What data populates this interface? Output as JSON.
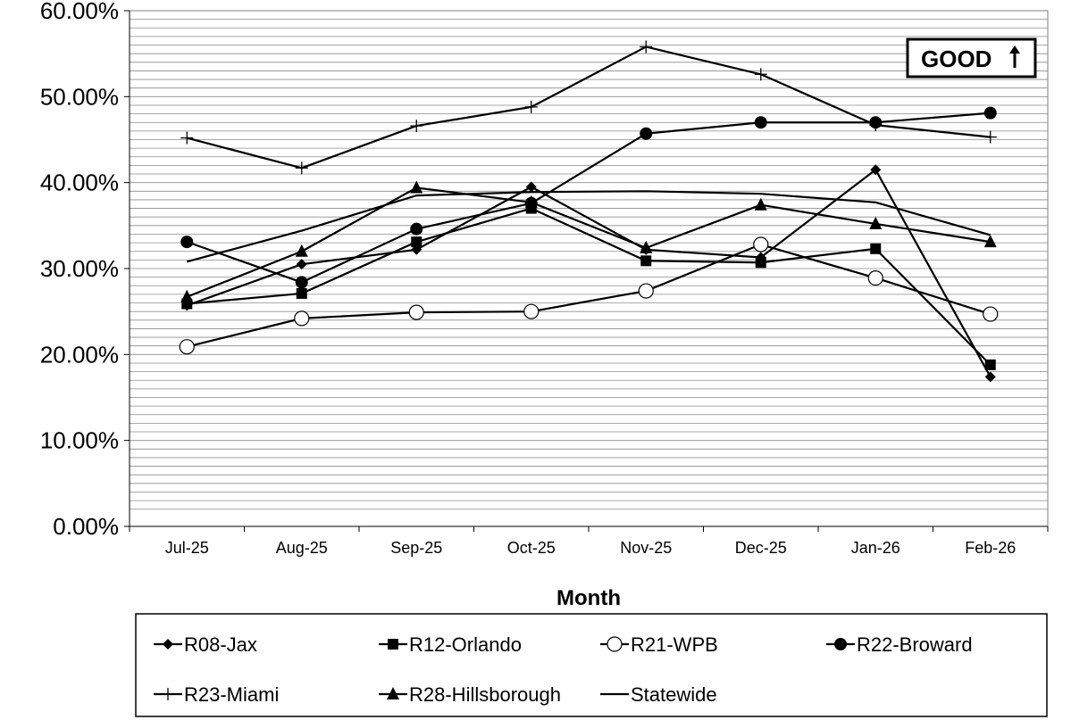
{
  "chart_data": {
    "type": "line",
    "xlabel": "Month",
    "ylabel": "",
    "ylim": [
      0,
      0.6
    ],
    "y_tick_values": [
      0,
      0.1,
      0.2,
      0.3,
      0.4,
      0.5,
      0.6
    ],
    "y_tick_labels": [
      "0.00%",
      "10.00%",
      "20.00%",
      "30.00%",
      "40.00%",
      "50.00%",
      "60.00%"
    ],
    "categories": [
      "Jul-25",
      "Aug-25",
      "Sep-25",
      "Oct-25",
      "Nov-25",
      "Dec-25",
      "Jan-26",
      "Feb-26"
    ],
    "grid": true,
    "legend_position": "bottom",
    "annotation": "GOOD",
    "annotation_icon": "up-arrow-icon",
    "series": [
      {
        "name": "R08-Jax",
        "marker": "diamond",
        "values": [
          0.257,
          0.305,
          0.322,
          0.395,
          0.322,
          0.313,
          0.415,
          0.174
        ]
      },
      {
        "name": "R12-Orlando",
        "marker": "square",
        "values": [
          0.259,
          0.271,
          0.331,
          0.37,
          0.309,
          0.307,
          0.323,
          0.188
        ]
      },
      {
        "name": "R21-WPB",
        "marker": "open-circle",
        "values": [
          0.209,
          0.242,
          0.249,
          0.25,
          0.274,
          0.328,
          0.289,
          0.247
        ]
      },
      {
        "name": "R22-Broward",
        "marker": "circle",
        "values": [
          0.331,
          0.284,
          0.346,
          0.376,
          0.457,
          0.47,
          0.47,
          0.481
        ]
      },
      {
        "name": "R23-Miami",
        "marker": "plus",
        "values": [
          0.452,
          0.417,
          0.466,
          0.488,
          0.558,
          0.526,
          0.467,
          0.453
        ]
      },
      {
        "name": "R28-Hillsborough",
        "marker": "triangle",
        "values": [
          0.267,
          0.32,
          0.394,
          0.377,
          0.324,
          0.374,
          0.352,
          0.331
        ]
      },
      {
        "name": "Statewide",
        "marker": "none",
        "values": [
          0.308,
          0.344,
          0.385,
          0.389,
          0.39,
          0.387,
          0.377,
          0.339
        ]
      }
    ]
  }
}
